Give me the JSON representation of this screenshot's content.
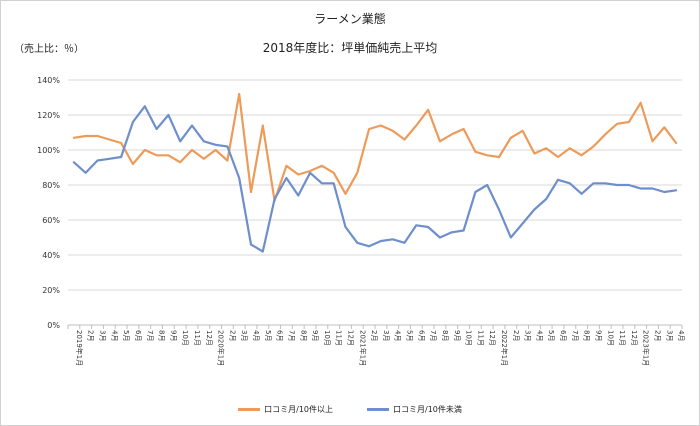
{
  "chart_data": {
    "type": "line",
    "title": "ラーメン業態",
    "subtitle": "2018年度比：坪単価純売上平均",
    "ylabel": "（売上比：％）",
    "ylim": [
      0,
      140
    ],
    "yticks": [
      "0%",
      "20%",
      "40%",
      "60%",
      "80%",
      "100%",
      "120%",
      "140%"
    ],
    "grid": true,
    "legend_position": "bottom",
    "colors": {
      "series1": "#ED9B5A",
      "series2": "#6E8FCB",
      "grid": "#d9d9d9",
      "axis": "#bfbfbf"
    },
    "x": [
      "2019年1月",
      "2月",
      "3月",
      "4月",
      "5月",
      "6月",
      "7月",
      "8月",
      "9月",
      "10月",
      "11月",
      "12月",
      "2020年1月",
      "2月",
      "3月",
      "4月",
      "5月",
      "6月",
      "7月",
      "8月",
      "9月",
      "10月",
      "11月",
      "12月",
      "2021年1月",
      "2月",
      "3月",
      "4月",
      "5月",
      "6月",
      "7月",
      "8月",
      "9月",
      "10月",
      "11月",
      "12月",
      "2022年1月",
      "2月",
      "3月",
      "4月",
      "5月",
      "6月",
      "7月",
      "8月",
      "9月",
      "10月",
      "11月",
      "12月",
      "2023年1月",
      "2月",
      "3月",
      "4月"
    ],
    "series": [
      {
        "name": "口コミ月/10件以上",
        "values": [
          107,
          108,
          108,
          106,
          104,
          92,
          100,
          97,
          97,
          93,
          100,
          95,
          100,
          94,
          132,
          76,
          114,
          71,
          91,
          86,
          88,
          91,
          87,
          75,
          87,
          112,
          114,
          111,
          106,
          114,
          123,
          105,
          109,
          112,
          99,
          97,
          96,
          107,
          111,
          98,
          101,
          96,
          101,
          97,
          102,
          109,
          115,
          116,
          127,
          105,
          113,
          104
        ]
      },
      {
        "name": "口コミ月/10件未満",
        "values": [
          93,
          87,
          94,
          95,
          96,
          116,
          125,
          112,
          120,
          105,
          114,
          105,
          103,
          102,
          84,
          46,
          42,
          72,
          84,
          74,
          87,
          81,
          81,
          56,
          47,
          45,
          48,
          49,
          47,
          57,
          56,
          50,
          53,
          54,
          76,
          80,
          66,
          50,
          58,
          66,
          72,
          83,
          81,
          75,
          81,
          81,
          80,
          80,
          78,
          78,
          76,
          77
        ]
      }
    ]
  }
}
